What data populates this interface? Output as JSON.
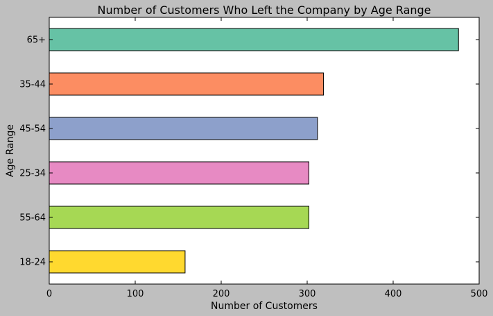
{
  "chart_data": {
    "type": "bar",
    "orientation": "horizontal",
    "title": "Number of Customers Who Left the Company by Age Range",
    "xlabel": "Number of Customers",
    "ylabel": "Age Range",
    "xlim": [
      0,
      500
    ],
    "x_ticks": [
      0,
      100,
      200,
      300,
      400,
      500
    ],
    "categories": [
      "65+",
      "35-44",
      "45-54",
      "25-34",
      "55-64",
      "18-24"
    ],
    "values": [
      476,
      319,
      312,
      302,
      302,
      158
    ],
    "colors": [
      "#66c2a5",
      "#fc8d62",
      "#8da0cb",
      "#e78ac3",
      "#a6d854",
      "#ffd92f"
    ],
    "background": "#bfbfbf",
    "plot_background": "#ffffff",
    "grid": false,
    "legend": "none"
  }
}
